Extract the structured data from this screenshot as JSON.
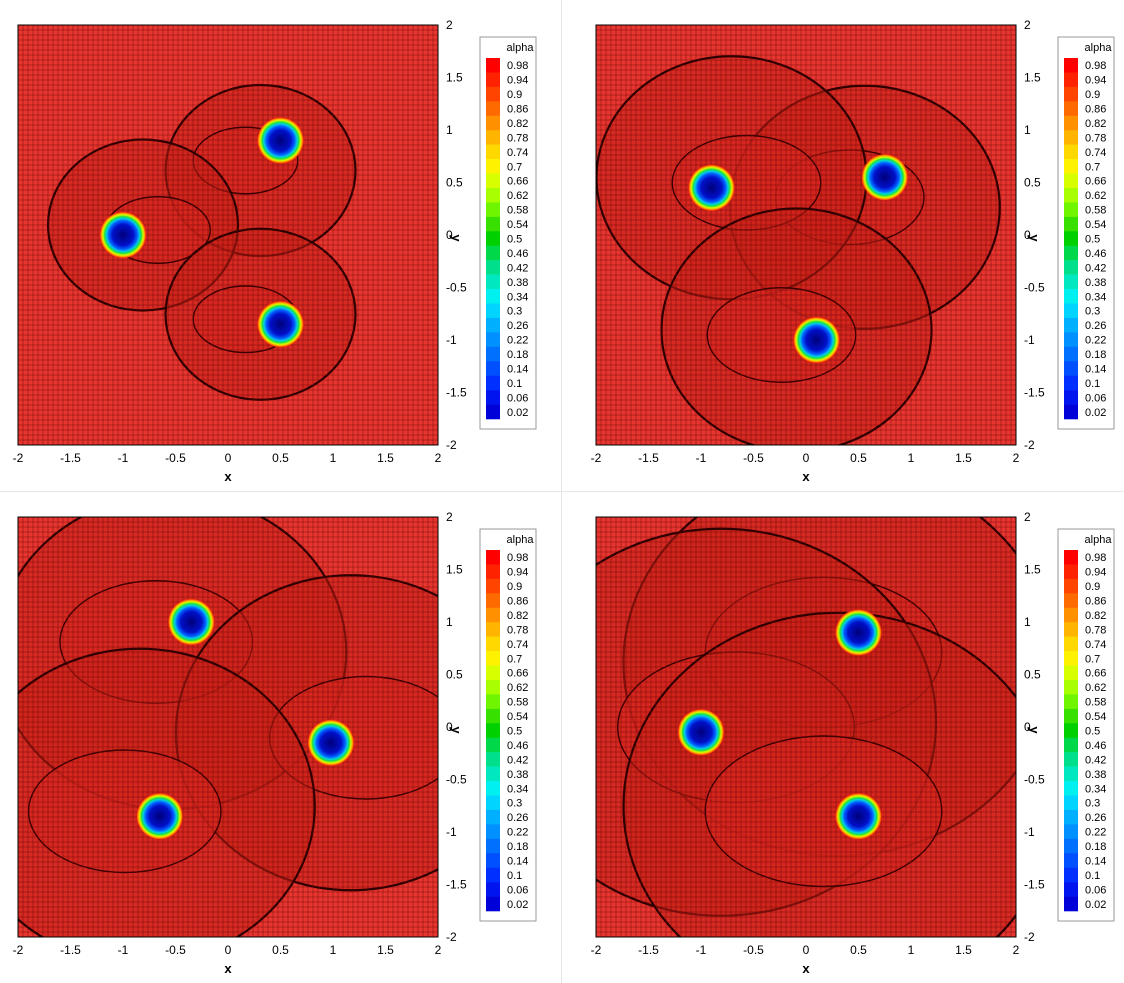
{
  "chart_data": [
    {
      "type": "heatmap",
      "xlabel": "x",
      "ylabel": "y",
      "xlim": [
        -2,
        2
      ],
      "ylim": [
        -2,
        2
      ],
      "x_ticks": [
        "-2",
        "-1.5",
        "-1",
        "-0.5",
        "0",
        "0.5",
        "1",
        "1.5",
        "2"
      ],
      "y_ticks": [
        "2",
        "1.5",
        "1",
        "0.5",
        "0",
        "-0.5",
        "-1",
        "-1.5",
        "-2"
      ],
      "colorbar": {
        "title": "alpha",
        "levels": [
          "0.98",
          "0.94",
          "0.9",
          "0.86",
          "0.82",
          "0.78",
          "0.74",
          "0.7",
          "0.66",
          "0.62",
          "0.58",
          "0.54",
          "0.5",
          "0.46",
          "0.42",
          "0.38",
          "0.34",
          "0.3",
          "0.26",
          "0.22",
          "0.18",
          "0.14",
          "0.1",
          "0.06",
          "0.02"
        ],
        "colors": [
          "#ff0000",
          "#ff2200",
          "#ff4400",
          "#ff6a00",
          "#ff9000",
          "#ffb400",
          "#ffd800",
          "#fff200",
          "#d8ff00",
          "#a8ff00",
          "#70f500",
          "#38e000",
          "#00d000",
          "#00d84a",
          "#00e08c",
          "#00e8c0",
          "#00f0f0",
          "#00d4ff",
          "#00b0ff",
          "#0090ff",
          "#0070ff",
          "#0050ff",
          "#0030ff",
          "#0014f0",
          "#0000d8"
        ]
      },
      "droplets": [
        {
          "x": 0.5,
          "y": 0.9
        },
        {
          "x": -1.0,
          "y": 0.0
        },
        {
          "x": 0.5,
          "y": -0.85
        }
      ]
    },
    {
      "type": "heatmap",
      "xlabel": "x",
      "ylabel": "y",
      "xlim": [
        -2,
        2
      ],
      "ylim": [
        -2,
        2
      ],
      "x_ticks": [
        "-2",
        "-1.5",
        "-1",
        "-0.5",
        "0",
        "0.5",
        "1",
        "1.5",
        "2"
      ],
      "y_ticks": [
        "2",
        "1.5",
        "1",
        "0.5",
        "0",
        "-0.5",
        "-1",
        "-1.5",
        "-2"
      ],
      "colorbar": {
        "title": "alpha",
        "levels": [
          "0.98",
          "0.94",
          "0.9",
          "0.86",
          "0.82",
          "0.78",
          "0.74",
          "0.7",
          "0.66",
          "0.62",
          "0.58",
          "0.54",
          "0.5",
          "0.46",
          "0.42",
          "0.38",
          "0.34",
          "0.3",
          "0.26",
          "0.22",
          "0.18",
          "0.14",
          "0.1",
          "0.06",
          "0.02"
        ],
        "colors": [
          "#ff0000",
          "#ff2200",
          "#ff4400",
          "#ff6a00",
          "#ff9000",
          "#ffb400",
          "#ffd800",
          "#fff200",
          "#d8ff00",
          "#a8ff00",
          "#70f500",
          "#38e000",
          "#00d000",
          "#00d84a",
          "#00e08c",
          "#00e8c0",
          "#00f0f0",
          "#00d4ff",
          "#00b0ff",
          "#0090ff",
          "#0070ff",
          "#0050ff",
          "#0030ff",
          "#0014f0",
          "#0000d8"
        ]
      },
      "droplets": [
        {
          "x": 0.75,
          "y": 0.55
        },
        {
          "x": -0.9,
          "y": 0.45
        },
        {
          "x": 0.1,
          "y": -1.0
        }
      ]
    },
    {
      "type": "heatmap",
      "xlabel": "x",
      "ylabel": "y",
      "xlim": [
        -2,
        2
      ],
      "ylim": [
        -2,
        2
      ],
      "x_ticks": [
        "-2",
        "-1.5",
        "-1",
        "-0.5",
        "0",
        "0.5",
        "1",
        "1.5",
        "2"
      ],
      "y_ticks": [
        "2",
        "1.5",
        "1",
        "0.5",
        "0",
        "-0.5",
        "-1",
        "-1.5",
        "-2"
      ],
      "colorbar": {
        "title": "alpha",
        "levels": [
          "0.98",
          "0.94",
          "0.9",
          "0.86",
          "0.82",
          "0.78",
          "0.74",
          "0.7",
          "0.66",
          "0.62",
          "0.58",
          "0.54",
          "0.5",
          "0.46",
          "0.42",
          "0.38",
          "0.34",
          "0.3",
          "0.26",
          "0.22",
          "0.18",
          "0.14",
          "0.1",
          "0.06",
          "0.02"
        ],
        "colors": [
          "#ff0000",
          "#ff2200",
          "#ff4400",
          "#ff6a00",
          "#ff9000",
          "#ffb400",
          "#ffd800",
          "#fff200",
          "#d8ff00",
          "#a8ff00",
          "#70f500",
          "#38e000",
          "#00d000",
          "#00d84a",
          "#00e08c",
          "#00e8c0",
          "#00f0f0",
          "#00d4ff",
          "#00b0ff",
          "#0090ff",
          "#0070ff",
          "#0050ff",
          "#0030ff",
          "#0014f0",
          "#0000d8"
        ]
      },
      "droplets": [
        {
          "x": -0.35,
          "y": 1.0
        },
        {
          "x": 0.98,
          "y": -0.15
        },
        {
          "x": -0.65,
          "y": -0.85
        }
      ]
    },
    {
      "type": "heatmap",
      "xlabel": "x",
      "ylabel": "y",
      "xlim": [
        -2,
        2
      ],
      "ylim": [
        -2,
        2
      ],
      "x_ticks": [
        "-2",
        "-1.5",
        "-1",
        "-0.5",
        "0",
        "0.5",
        "1",
        "1.5",
        "2"
      ],
      "y_ticks": [
        "2",
        "1.5",
        "1",
        "0.5",
        "0",
        "-0.5",
        "-1",
        "-1.5",
        "-2"
      ],
      "colorbar": {
        "title": "alpha",
        "levels": [
          "0.98",
          "0.94",
          "0.9",
          "0.86",
          "0.82",
          "0.78",
          "0.74",
          "0.7",
          "0.66",
          "0.62",
          "0.58",
          "0.54",
          "0.5",
          "0.46",
          "0.42",
          "0.38",
          "0.34",
          "0.3",
          "0.26",
          "0.22",
          "0.18",
          "0.14",
          "0.1",
          "0.06",
          "0.02"
        ],
        "colors": [
          "#ff0000",
          "#ff2200",
          "#ff4400",
          "#ff6a00",
          "#ff9000",
          "#ffb400",
          "#ffd800",
          "#fff200",
          "#d8ff00",
          "#a8ff00",
          "#70f500",
          "#38e000",
          "#00d000",
          "#00d84a",
          "#00e08c",
          "#00e8c0",
          "#00f0f0",
          "#00d4ff",
          "#00b0ff",
          "#0090ff",
          "#0070ff",
          "#0050ff",
          "#0030ff",
          "#0014f0",
          "#0000d8"
        ]
      },
      "droplets": [
        {
          "x": 0.5,
          "y": 0.9
        },
        {
          "x": -1.0,
          "y": -0.05
        },
        {
          "x": 0.5,
          "y": -0.85
        }
      ]
    }
  ]
}
